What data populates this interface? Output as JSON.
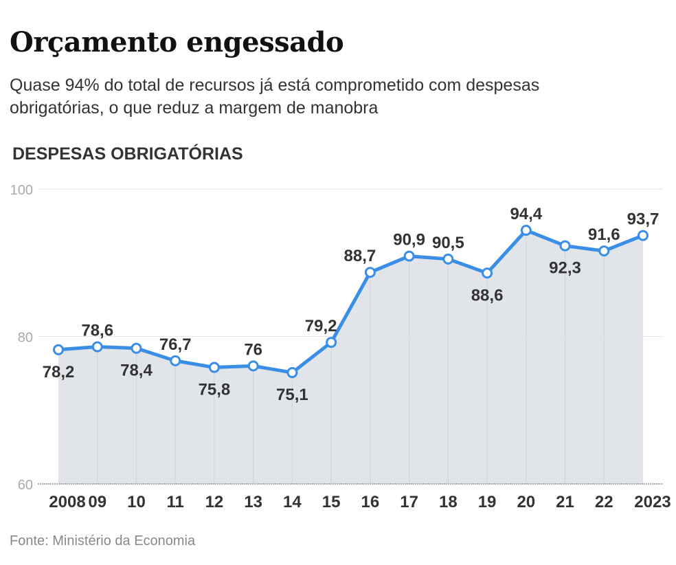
{
  "header": {
    "title": "Orçamento engessado",
    "subtitle": "Quase 94% do total de recursos já está comprometido com despesas obrigatórias, o que reduz a margem de manobra"
  },
  "footer": {
    "source": "Fonte: Ministério da Economia"
  },
  "chart_data": {
    "type": "area",
    "title": "DESPESAS OBRIGATÓRIAS",
    "xlabel": "",
    "ylabel": "",
    "categories": [
      "2008",
      "09",
      "10",
      "11",
      "12",
      "13",
      "14",
      "15",
      "16",
      "17",
      "18",
      "19",
      "20",
      "21",
      "22",
      "2023"
    ],
    "values": [
      78.2,
      78.6,
      78.4,
      76.7,
      75.8,
      76,
      75.1,
      79.2,
      88.7,
      90.9,
      90.5,
      88.6,
      94.4,
      92.3,
      91.6,
      93.7
    ],
    "value_labels": [
      "78,2",
      "78,6",
      "78,4",
      "76,7",
      "75,8",
      "76",
      "75,1",
      "79,2",
      "88,7",
      "90,9",
      "90,5",
      "88,6",
      "94,4",
      "92,3",
      "91,6",
      "93,7"
    ],
    "label_position": [
      "below",
      "above",
      "below",
      "above",
      "below",
      "above",
      "below",
      "above",
      "above",
      "above",
      "above",
      "below",
      "above",
      "below",
      "above",
      "above"
    ],
    "ylim": [
      60,
      100
    ],
    "yticks": [
      "60",
      "80",
      "100"
    ],
    "grid": true,
    "colors": {
      "line": "#3a8ee6",
      "fill": "#e1e5ea",
      "marker_fill": "#ffffff"
    }
  }
}
